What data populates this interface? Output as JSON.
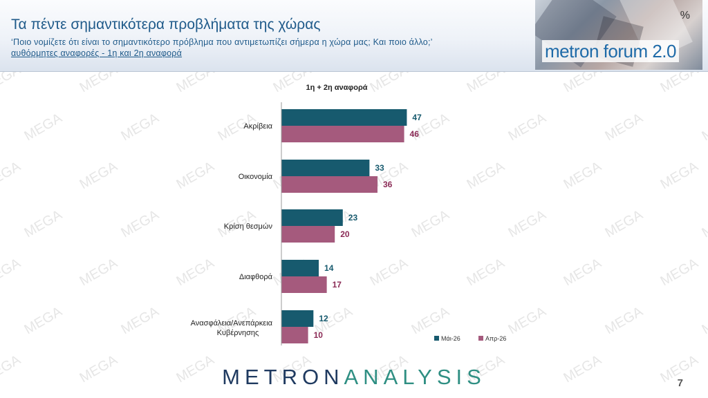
{
  "header": {
    "title": "Τα πέντε σημαντικότερα προβλήματα της χώρας",
    "subtitle_line1": "‘Ποιο νομίζετε ότι είναι το σημαντικότερο πρόβλημα που αντιμετωπίζει σήμερα η χώρα μας; Και ποιο άλλο;’",
    "subtitle_line2": "αυθόρμητες αναφορές - 1η και 2η αναφορά",
    "banner_text": "metron forum 2.0",
    "banner_symbol": "%"
  },
  "watermark": {
    "text": "MEGA"
  },
  "chart_data": {
    "type": "bar",
    "orientation": "horizontal",
    "title": "1η + 2η αναφορά",
    "categories": [
      "Ακρίβεια",
      "Οικονομία",
      "Κρίση θεσμών",
      "Διαφθορά",
      "Ανασφάλεια/Ανεπάρκεια Κυβέρνησης"
    ],
    "series": [
      {
        "name": "Μάι-26",
        "values": [
          47,
          33,
          23,
          14,
          12
        ],
        "color": "#175a6e"
      },
      {
        "name": "Απρ-26",
        "values": [
          46,
          36,
          20,
          17,
          10
        ],
        "color": "#a55a7d"
      }
    ],
    "label_colors": [
      "#175a6e",
      "#8a2a55"
    ],
    "xlim": [
      0,
      60
    ],
    "grid": false,
    "legend_position": "bottom-right"
  },
  "footer": {
    "logo_left": "METRON",
    "logo_right": "ANALYSIS",
    "page_number": "7"
  }
}
